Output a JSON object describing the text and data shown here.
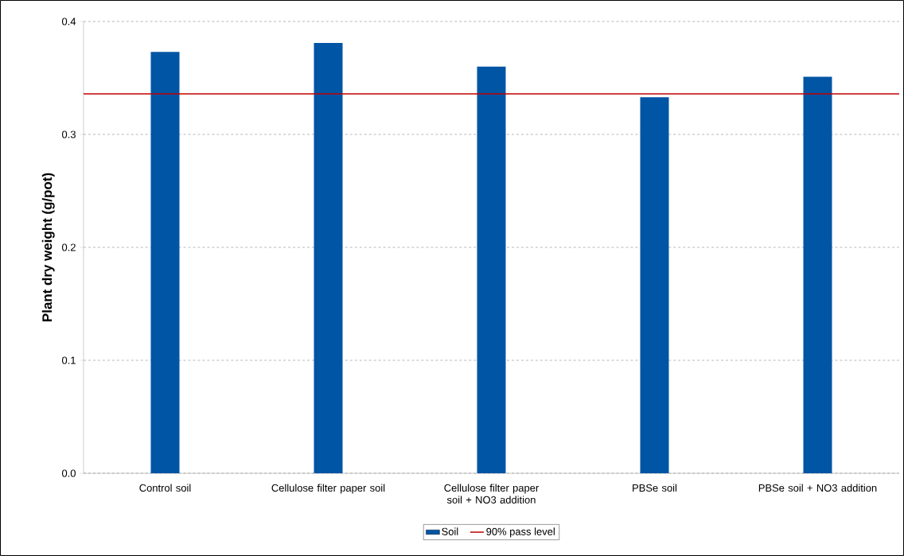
{
  "chart_data": {
    "type": "bar",
    "ylabel": "Plant dry weight (g/pot)",
    "categories": [
      "Control soil",
      "Cellulose filter paper soil",
      "Cellulose filter paper soil + NO3 addition",
      "PBSe soil",
      "PBSe soil + NO3 addition"
    ],
    "series": [
      {
        "name": "Soil",
        "color": "#0055a5",
        "values": [
          0.373,
          0.381,
          0.36,
          0.333,
          0.351
        ]
      }
    ],
    "ref_lines": [
      {
        "axis": "y",
        "value": 0.336,
        "label": "90% pass level",
        "color": "#c00000"
      }
    ],
    "ylim": [
      0,
      0.4
    ],
    "yticks": [
      {
        "value": 0,
        "label": "0.0"
      },
      0.1,
      0.2,
      0.3,
      0.4
    ],
    "grid": "y",
    "legend": "bottom"
  }
}
